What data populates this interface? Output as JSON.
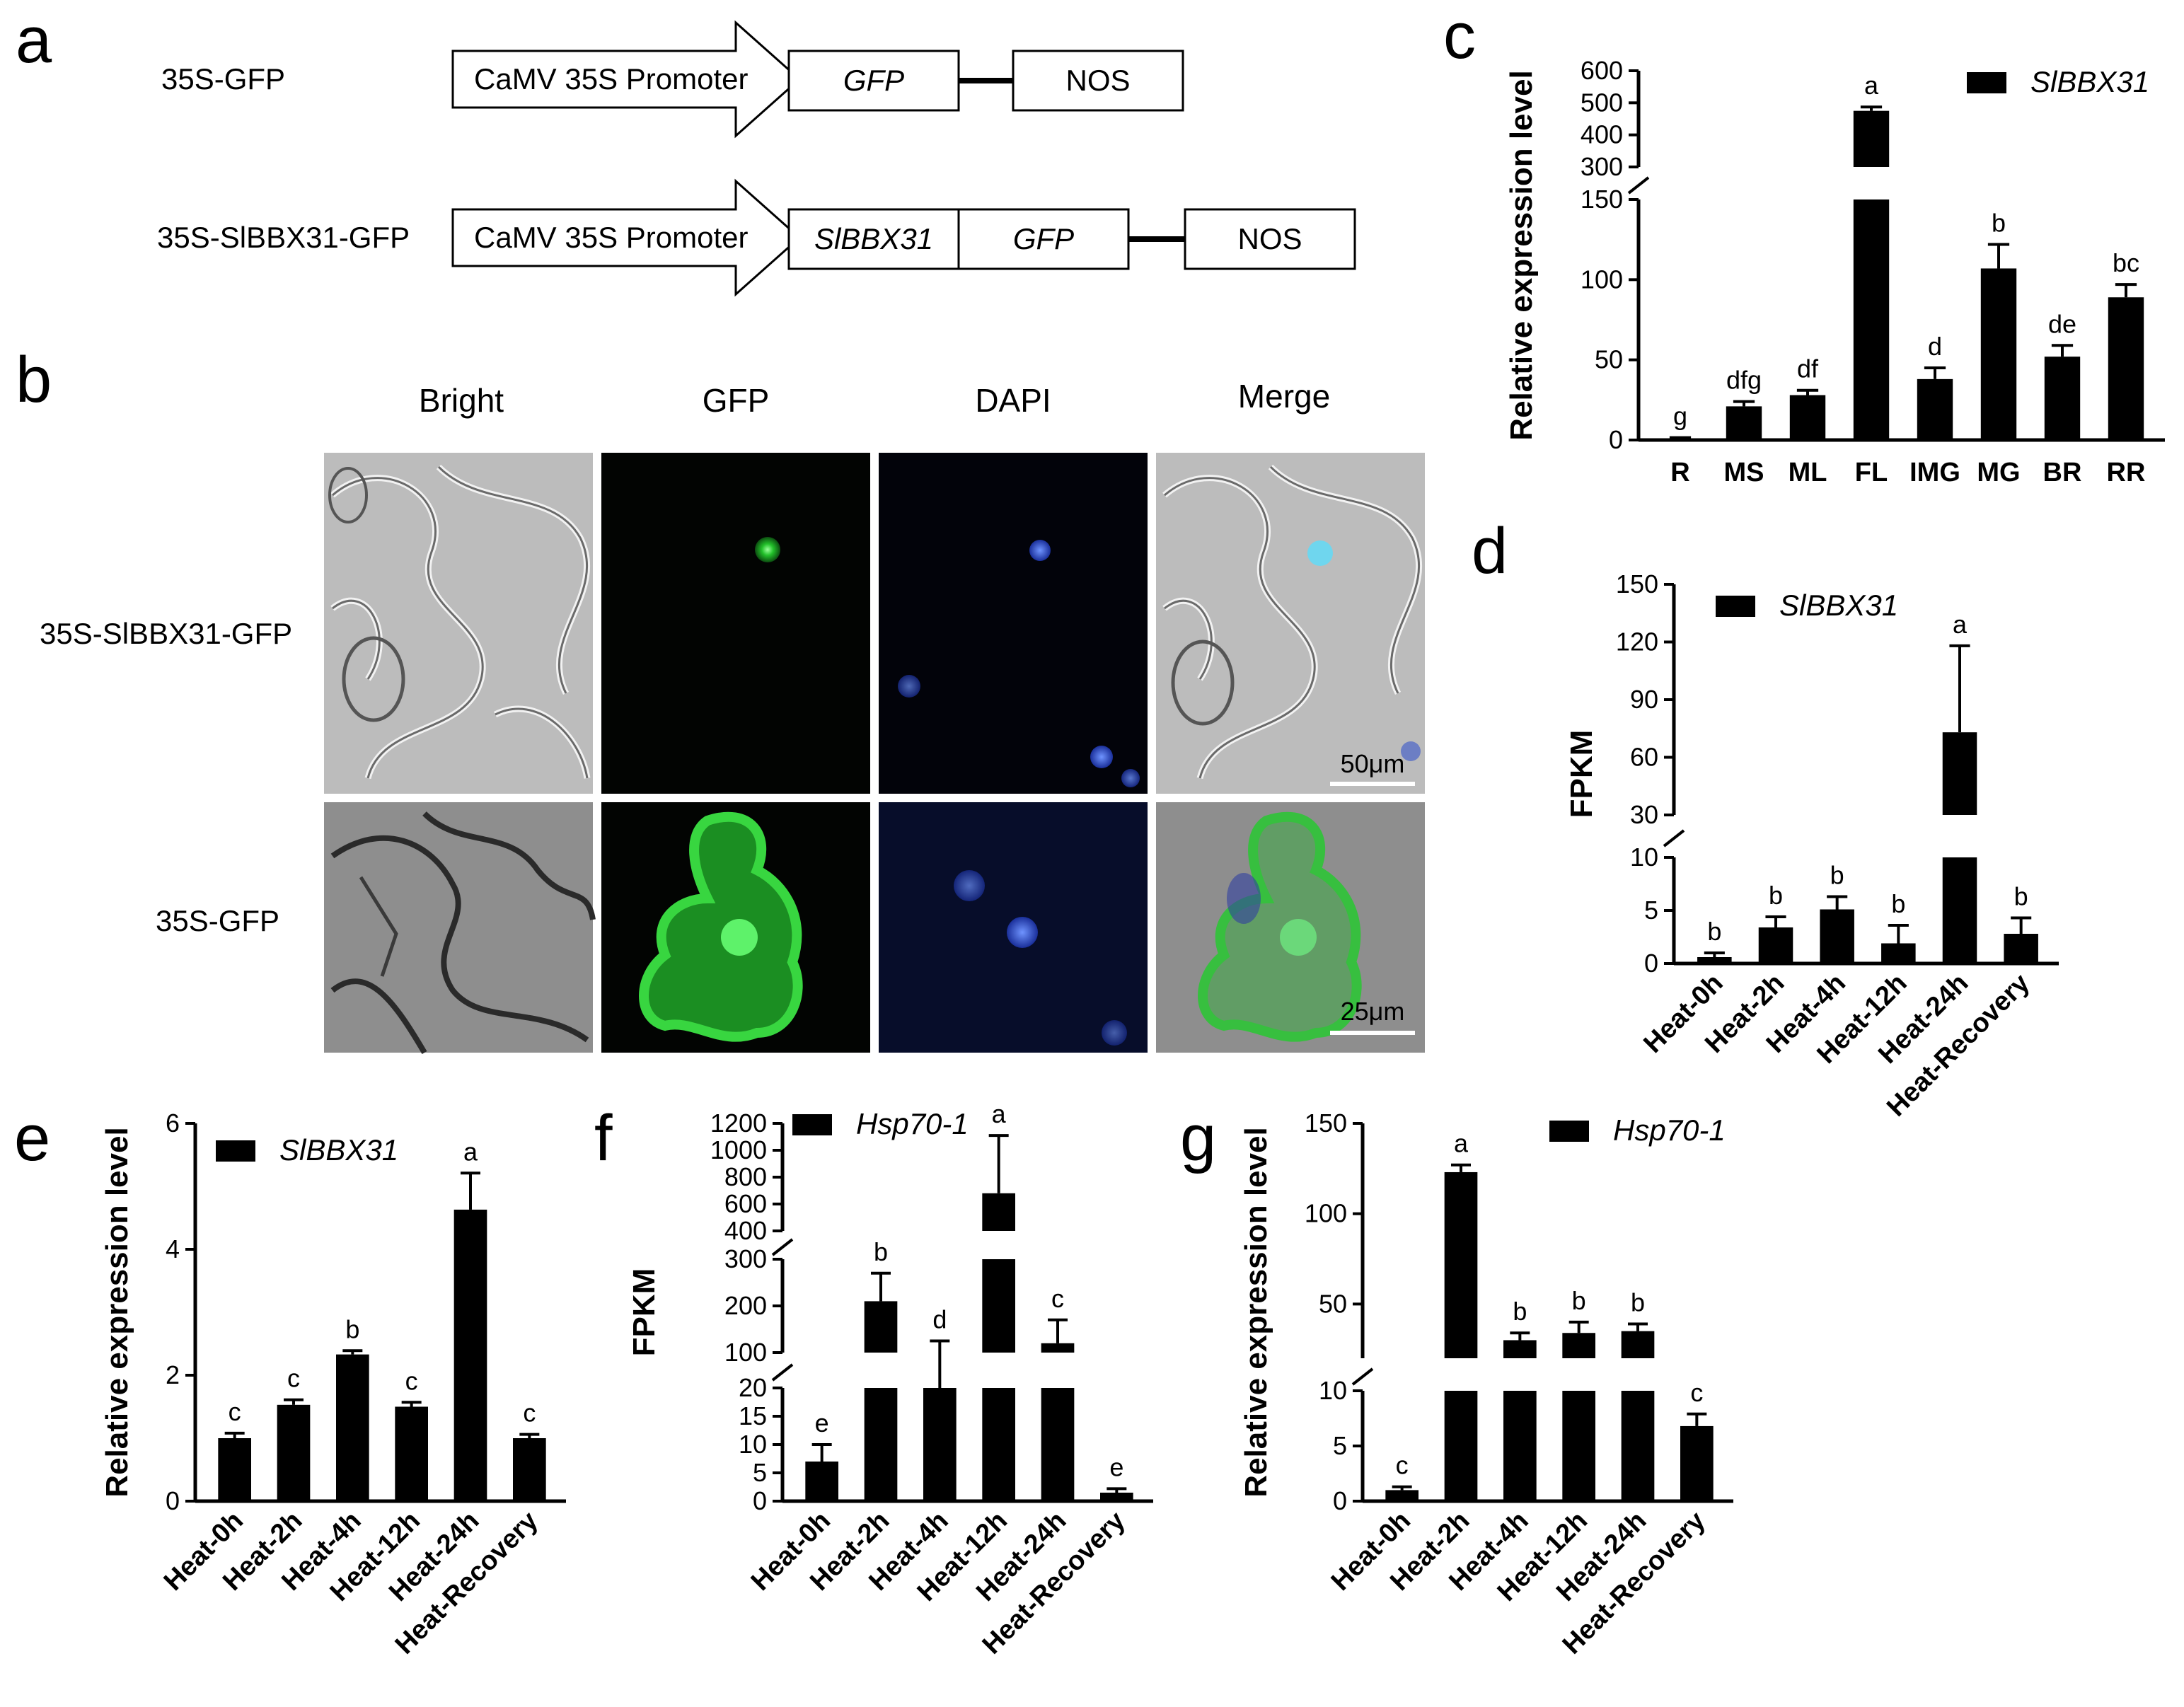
{
  "panels": {
    "a": "a",
    "b": "b",
    "c": "c",
    "d": "d",
    "e": "e",
    "f": "f",
    "g": "g"
  },
  "constructs": {
    "row1": {
      "name": "35S-GFP",
      "promoter": "CaMV 35S Promoter",
      "gene": "GFP",
      "terminator": "NOS"
    },
    "row2": {
      "name": "35S-SlBBX31-GFP",
      "promoter": "CaMV 35S Promoter",
      "gene": "SlBBX31",
      "tag": "GFP",
      "terminator": "NOS"
    }
  },
  "microscopy": {
    "columns": [
      "Bright",
      "GFP",
      "DAPI",
      "Merge"
    ],
    "rows": [
      "35S-SlBBX31-GFP",
      "35S-GFP"
    ],
    "scalebars": [
      "50μm",
      "25μm"
    ],
    "colors": {
      "gfp": "#22c02a",
      "dapi": "#2a55e0",
      "bright": "#b9b9b9"
    }
  },
  "chart_data": [
    {
      "id": "c",
      "type": "bar",
      "ylabel": "Relative expression level",
      "legend": "SlBBX31",
      "categories": [
        "R",
        "MS",
        "ML",
        "FL",
        "IMG",
        "MG",
        "BR",
        "RR"
      ],
      "values": [
        1,
        21,
        28,
        475,
        38,
        107,
        52,
        89
      ],
      "errors": [
        0.5,
        3,
        3,
        12,
        7,
        15,
        7,
        8
      ],
      "letters": [
        "g",
        "dfg",
        "df",
        "a",
        "d",
        "b",
        "de",
        "bc"
      ],
      "ylim": [
        0,
        600
      ],
      "axis_break": [
        150,
        300
      ],
      "yticks": [
        0,
        50,
        100,
        150,
        300,
        400,
        500,
        600
      ]
    },
    {
      "id": "d",
      "type": "bar",
      "ylabel": "FPKM",
      "legend": "SlBBX31",
      "categories": [
        "Heat-0h",
        "Heat-2h",
        "Heat-4h",
        "Heat-12h",
        "Heat-24h",
        "Heat-Recovery"
      ],
      "values": [
        0.6,
        3.4,
        5.1,
        1.9,
        73,
        2.8
      ],
      "errors": [
        0.4,
        1.0,
        1.2,
        1.7,
        45,
        1.5
      ],
      "letters": [
        "b",
        "b",
        "b",
        "b",
        "a",
        "b"
      ],
      "ylim": [
        0,
        150
      ],
      "axis_break": [
        10,
        30
      ],
      "yticks": [
        0,
        5,
        10,
        30,
        60,
        90,
        120,
        150
      ]
    },
    {
      "id": "e",
      "type": "bar",
      "ylabel": "Relative expression level",
      "legend": "SlBBX31",
      "categories": [
        "Heat-0h",
        "Heat-2h",
        "Heat-4h",
        "Heat-12h",
        "Heat-24h",
        "Heat-Recovery"
      ],
      "values": [
        1.0,
        1.53,
        2.33,
        1.5,
        4.63,
        1.0
      ],
      "errors": [
        0.08,
        0.08,
        0.06,
        0.07,
        0.58,
        0.06
      ],
      "letters": [
        "c",
        "c",
        "b",
        "c",
        "a",
        "c"
      ],
      "ylim": [
        0,
        6
      ],
      "yticks": [
        0,
        2,
        4,
        6
      ]
    },
    {
      "id": "f",
      "type": "bar",
      "ylabel": "FPKM",
      "legend": "Hsp70-1",
      "categories": [
        "Heat-0h",
        "Heat-2h",
        "Heat-4h",
        "Heat-12h",
        "Heat-24h",
        "Heat-Recovery"
      ],
      "values": [
        7,
        210,
        65,
        680,
        120,
        1.5
      ],
      "errors": [
        3,
        60,
        60,
        430,
        50,
        0.7
      ],
      "letters": [
        "e",
        "b",
        "d",
        "a",
        "c",
        "e"
      ],
      "ylim": [
        0,
        1200
      ],
      "segments": [
        [
          0,
          20
        ],
        [
          100,
          300
        ],
        [
          400,
          1200
        ]
      ],
      "yticks": [
        0,
        5,
        10,
        15,
        20,
        100,
        200,
        300,
        400,
        600,
        800,
        1000,
        1200
      ]
    },
    {
      "id": "g",
      "type": "bar",
      "ylabel": "Relative expression level",
      "legend": "Hsp70-1",
      "categories": [
        "Heat-0h",
        "Heat-2h",
        "Heat-4h",
        "Heat-12h",
        "Heat-24h",
        "Heat-Recovery"
      ],
      "values": [
        1.0,
        123,
        30,
        34,
        35,
        6.8
      ],
      "errors": [
        0.3,
        4,
        4,
        6,
        4,
        1.1
      ],
      "letters": [
        "c",
        "a",
        "b",
        "b",
        "b",
        "c"
      ],
      "ylim": [
        0,
        150
      ],
      "axis_break": [
        10,
        20
      ],
      "yticks": [
        0,
        5,
        10,
        50,
        100,
        150
      ]
    }
  ]
}
